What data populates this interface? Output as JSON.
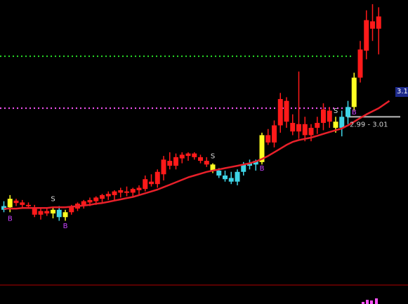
{
  "chart_data": {
    "type": "candlestick",
    "background": "#000000",
    "colors": {
      "rise": "#ff1a1a",
      "fall": "#3fd4e6",
      "signal": "#ffff22",
      "ma": "#e8202a",
      "level_green": "#28e028",
      "level_magenta": "#ff55ff",
      "marker_s": "#dddddd",
      "marker_b": "#cc44ff",
      "bottom_line": "#b00000"
    },
    "y_range": [
      0,
      420
    ],
    "candles": [
      {
        "o": 90,
        "h": 98,
        "l": 80,
        "c": 84,
        "t": "cyan"
      },
      {
        "o": 88,
        "h": 108,
        "l": 80,
        "c": 102,
        "t": "yellow"
      },
      {
        "o": 95,
        "h": 102,
        "l": 90,
        "c": 99,
        "t": "red"
      },
      {
        "o": 96,
        "h": 100,
        "l": 88,
        "c": 92,
        "t": "red"
      },
      {
        "o": 92,
        "h": 96,
        "l": 86,
        "c": 90,
        "t": "red"
      },
      {
        "o": 88,
        "h": 92,
        "l": 72,
        "c": 76,
        "t": "red"
      },
      {
        "o": 76,
        "h": 86,
        "l": 68,
        "c": 82,
        "t": "red"
      },
      {
        "o": 82,
        "h": 88,
        "l": 74,
        "c": 78,
        "t": "red"
      },
      {
        "o": 78,
        "h": 88,
        "l": 70,
        "c": 84,
        "t": "yellow"
      },
      {
        "o": 84,
        "h": 90,
        "l": 66,
        "c": 72,
        "t": "cyan"
      },
      {
        "o": 72,
        "h": 84,
        "l": 66,
        "c": 80,
        "t": "yellow"
      },
      {
        "o": 80,
        "h": 92,
        "l": 76,
        "c": 88,
        "t": "red"
      },
      {
        "o": 86,
        "h": 96,
        "l": 82,
        "c": 94,
        "t": "red"
      },
      {
        "o": 92,
        "h": 100,
        "l": 86,
        "c": 98,
        "t": "red"
      },
      {
        "o": 96,
        "h": 104,
        "l": 90,
        "c": 100,
        "t": "red"
      },
      {
        "o": 98,
        "h": 106,
        "l": 92,
        "c": 104,
        "t": "red"
      },
      {
        "o": 102,
        "h": 110,
        "l": 96,
        "c": 108,
        "t": "red"
      },
      {
        "o": 106,
        "h": 114,
        "l": 100,
        "c": 110,
        "t": "red"
      },
      {
        "o": 108,
        "h": 116,
        "l": 100,
        "c": 114,
        "t": "red"
      },
      {
        "o": 112,
        "h": 120,
        "l": 104,
        "c": 116,
        "t": "red"
      },
      {
        "o": 114,
        "h": 122,
        "l": 106,
        "c": 112,
        "t": "red"
      },
      {
        "o": 112,
        "h": 120,
        "l": 106,
        "c": 118,
        "t": "red"
      },
      {
        "o": 116,
        "h": 124,
        "l": 108,
        "c": 120,
        "t": "red"
      },
      {
        "o": 118,
        "h": 140,
        "l": 114,
        "c": 134,
        "t": "red"
      },
      {
        "o": 130,
        "h": 142,
        "l": 122,
        "c": 126,
        "t": "red"
      },
      {
        "o": 126,
        "h": 150,
        "l": 120,
        "c": 146,
        "t": "red"
      },
      {
        "o": 142,
        "h": 172,
        "l": 132,
        "c": 166,
        "t": "red"
      },
      {
        "o": 164,
        "h": 178,
        "l": 150,
        "c": 156,
        "t": "red"
      },
      {
        "o": 156,
        "h": 176,
        "l": 150,
        "c": 170,
        "t": "red"
      },
      {
        "o": 168,
        "h": 178,
        "l": 160,
        "c": 174,
        "t": "red"
      },
      {
        "o": 172,
        "h": 178,
        "l": 164,
        "c": 176,
        "t": "red"
      },
      {
        "o": 176,
        "h": 178,
        "l": 166,
        "c": 170,
        "t": "red"
      },
      {
        "o": 170,
        "h": 174,
        "l": 160,
        "c": 164,
        "t": "red"
      },
      {
        "o": 164,
        "h": 170,
        "l": 154,
        "c": 158,
        "t": "red"
      },
      {
        "o": 158,
        "h": 160,
        "l": 144,
        "c": 148,
        "t": "yellow"
      },
      {
        "o": 148,
        "h": 152,
        "l": 136,
        "c": 140,
        "t": "cyan"
      },
      {
        "o": 140,
        "h": 148,
        "l": 130,
        "c": 134,
        "t": "cyan"
      },
      {
        "o": 136,
        "h": 146,
        "l": 126,
        "c": 130,
        "t": "cyan"
      },
      {
        "o": 130,
        "h": 150,
        "l": 124,
        "c": 146,
        "t": "cyan"
      },
      {
        "o": 146,
        "h": 162,
        "l": 140,
        "c": 158,
        "t": "cyan"
      },
      {
        "o": 156,
        "h": 166,
        "l": 150,
        "c": 160,
        "t": "cyan"
      },
      {
        "o": 158,
        "h": 166,
        "l": 148,
        "c": 164,
        "t": "cyan"
      },
      {
        "o": 162,
        "h": 210,
        "l": 158,
        "c": 206,
        "t": "yellow"
      },
      {
        "o": 206,
        "h": 216,
        "l": 190,
        "c": 194,
        "t": "red"
      },
      {
        "o": 194,
        "h": 230,
        "l": 186,
        "c": 222,
        "t": "red"
      },
      {
        "o": 222,
        "h": 275,
        "l": 210,
        "c": 265,
        "t": "red"
      },
      {
        "o": 262,
        "h": 268,
        "l": 218,
        "c": 228,
        "t": "red"
      },
      {
        "o": 226,
        "h": 240,
        "l": 206,
        "c": 212,
        "t": "red"
      },
      {
        "o": 212,
        "h": 310,
        "l": 200,
        "c": 224,
        "t": "red"
      },
      {
        "o": 224,
        "h": 236,
        "l": 196,
        "c": 206,
        "t": "red"
      },
      {
        "o": 206,
        "h": 224,
        "l": 196,
        "c": 218,
        "t": "red"
      },
      {
        "o": 218,
        "h": 236,
        "l": 208,
        "c": 226,
        "t": "red"
      },
      {
        "o": 226,
        "h": 258,
        "l": 214,
        "c": 248,
        "t": "red"
      },
      {
        "o": 246,
        "h": 252,
        "l": 218,
        "c": 228,
        "t": "red"
      },
      {
        "o": 228,
        "h": 236,
        "l": 210,
        "c": 218,
        "t": "yellow"
      },
      {
        "o": 218,
        "h": 246,
        "l": 204,
        "c": 236,
        "t": "cyan"
      },
      {
        "o": 236,
        "h": 262,
        "l": 224,
        "c": 252,
        "t": "cyan"
      },
      {
        "o": 252,
        "h": 308,
        "l": 246,
        "c": 300,
        "t": "yellow"
      },
      {
        "o": 300,
        "h": 360,
        "l": 292,
        "c": 346,
        "t": "red"
      },
      {
        "o": 344,
        "h": 410,
        "l": 330,
        "c": 394,
        "t": "red"
      },
      {
        "o": 392,
        "h": 420,
        "l": 360,
        "c": 380,
        "t": "red"
      },
      {
        "o": 380,
        "h": 415,
        "l": 338,
        "c": 400,
        "t": "red"
      }
    ],
    "ma": [
      86,
      86,
      86,
      87,
      87,
      87,
      87,
      87,
      88,
      88,
      88,
      89,
      90,
      91,
      92,
      94,
      95,
      97,
      99,
      101,
      103,
      105,
      108,
      111,
      114,
      117,
      121,
      125,
      129,
      133,
      137,
      140,
      143,
      146,
      148,
      150,
      152,
      154,
      156,
      158,
      160,
      163,
      167,
      172,
      178,
      184,
      190,
      195,
      198,
      200,
      202,
      205,
      208,
      211,
      214,
      217,
      222,
      228,
      234,
      240,
      245,
      250
    ],
    "levels": [
      {
        "name": "green",
        "value": 335
      },
      {
        "name": "magenta",
        "value": 250
      },
      {
        "name": "current",
        "value": 236
      }
    ],
    "markers": [
      {
        "i": 8,
        "label": "S",
        "pos": "above",
        "value": 98
      },
      {
        "i": 1,
        "label": "B",
        "pos": "below",
        "value": 66
      },
      {
        "i": 10,
        "label": "B",
        "pos": "below",
        "value": 54
      },
      {
        "i": 34,
        "label": "S",
        "pos": "above",
        "value": 168
      },
      {
        "i": 42,
        "label": "B",
        "pos": "below",
        "value": 148
      },
      {
        "i": 54,
        "label": "S",
        "pos": "above",
        "value": 242
      },
      {
        "i": 57,
        "label": "B",
        "pos": "below",
        "value": 240
      }
    ],
    "price_label": "2.99 - 3.01",
    "right_axis_label": "3.1"
  }
}
